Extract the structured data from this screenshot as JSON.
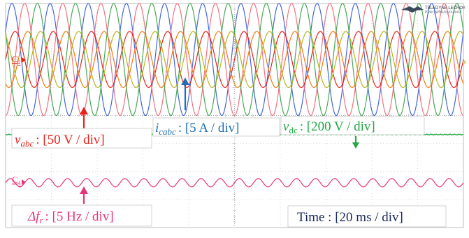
{
  "chart_data": {
    "type": "line",
    "title": "",
    "grid": true,
    "time_per_div": "20 ms",
    "channels": [
      {
        "name": "v_abc",
        "label_main": "v",
        "label_sub": "abc",
        "label_scale": ": [50 V / div]",
        "channel_marker": "C",
        "channel_marker_sub": "2",
        "color": "#e8231c",
        "series": [
          {
            "phase": "a",
            "color": "#e8231c",
            "amplitude_div": 1.0,
            "phase_deg": 0
          },
          {
            "phase": "b",
            "color": "#f07d10",
            "amplitude_div": 1.0,
            "phase_deg": -120
          },
          {
            "phase": "c",
            "color": "#b7b41e",
            "amplitude_div": 1.0,
            "phase_deg": 120
          }
        ]
      },
      {
        "name": "i_cabc",
        "label_main": "i",
        "label_sub": "cabc",
        "label_scale": ": [5 A / div]",
        "color": "#1f6fb5",
        "series": [
          {
            "phase": "a",
            "color": "#3a5fd6",
            "amplitude_div": 2.0,
            "phase_deg": 30
          },
          {
            "phase": "b",
            "color": "#f06a7a",
            "amplitude_div": 2.0,
            "phase_deg": -90
          },
          {
            "phase": "c",
            "color": "#3fa34d",
            "amplitude_div": 2.0,
            "phase_deg": 150
          }
        ]
      },
      {
        "name": "v_dc",
        "label_main": "v",
        "label_sub": "dc",
        "label_scale": ": [200 V / div]",
        "color": "#22a845",
        "level_div": -1.0
      },
      {
        "name": "delta_f_r",
        "label_main": "Δf",
        "label_sub": "r",
        "label_scale": ": [5 Hz / div]",
        "channel_marker": "C",
        "channel_marker_sub": "4",
        "color": "#e8337a",
        "ripple_amplitude_div": 0.1
      }
    ],
    "fundamental_hz": 60,
    "ripple_hz": 120,
    "time_label": "Time : [20 ms / div]"
  },
  "brand": {
    "name": "TELEDYNE LECROY",
    "tagline": "Everywhereyoulook"
  }
}
